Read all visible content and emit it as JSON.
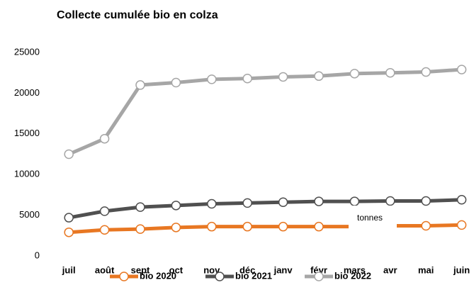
{
  "chart_data": {
    "type": "line",
    "title": "Collecte cumulée bio en colza",
    "categories": [
      "juil",
      "août",
      "sept",
      "oct",
      "nov",
      "déc",
      "janv",
      "févr",
      "mars",
      "avr",
      "mai",
      "juin"
    ],
    "series": [
      {
        "name": "bio 2020",
        "color": "#e87722",
        "values": [
          2900,
          3200,
          3300,
          3500,
          3600,
          3600,
          3600,
          3600,
          3600,
          3700,
          3700,
          3800
        ]
      },
      {
        "name": "bio 2021",
        "color": "#505050",
        "values": [
          4700,
          5500,
          6000,
          6200,
          6400,
          6500,
          6600,
          6700,
          6700,
          6750,
          6750,
          6900
        ]
      },
      {
        "name": "bio 2022",
        "color": "#a6a6a6",
        "values": [
          12500,
          14400,
          21000,
          21300,
          21700,
          21800,
          22000,
          22100,
          22400,
          22500,
          22600,
          22900
        ]
      }
    ],
    "ylim": [
      0,
      25000
    ],
    "yticks": [
      0,
      5000,
      10000,
      15000,
      20000,
      25000
    ],
    "annotation": "tonnes",
    "grid": false,
    "legend": "bottom"
  }
}
